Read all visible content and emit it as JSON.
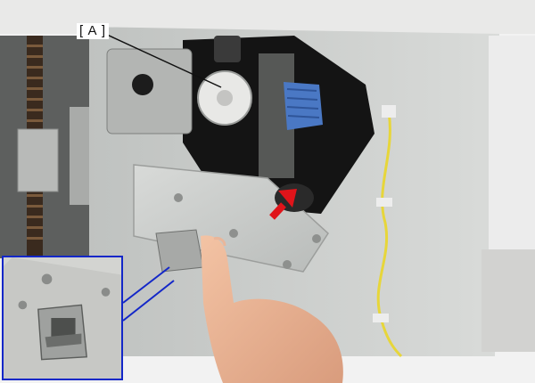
{
  "callout": {
    "label": "[ A ]"
  },
  "colors": {
    "inset_border": "#1327c8",
    "arrow": "#e0141a",
    "panel": "#c9cbc8",
    "cavity": "#141414",
    "wire": "#e7d63a"
  },
  "annotations": {
    "arrow_direction": "up-right",
    "inset_frame": "blue-outline-zoom"
  }
}
